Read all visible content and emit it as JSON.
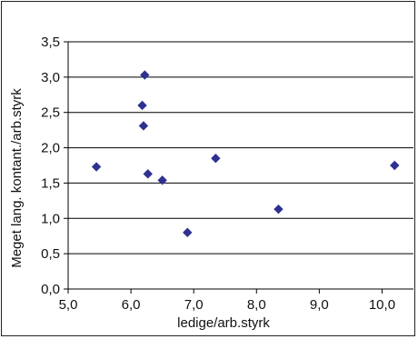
{
  "chart_data": {
    "type": "scatter",
    "title": "",
    "xlabel": "ledige/arb.styrk",
    "ylabel": "Meget lang. kontant./arb.styrk",
    "xlim": [
      5.0,
      10.5
    ],
    "ylim": [
      0.0,
      3.5
    ],
    "x_ticks": [
      "5,0",
      "6,0",
      "7,0",
      "8,0",
      "9,0",
      "10,0"
    ],
    "y_ticks": [
      "0,0",
      "0,5",
      "1,0",
      "1,5",
      "2,0",
      "2,5",
      "3,0",
      "3,5"
    ],
    "grid": "horizontal",
    "legend": "none",
    "marker_color": "#2E3192",
    "points": [
      {
        "x": 5.45,
        "y": 1.73
      },
      {
        "x": 6.18,
        "y": 2.6
      },
      {
        "x": 6.2,
        "y": 2.31
      },
      {
        "x": 6.22,
        "y": 3.03
      },
      {
        "x": 6.27,
        "y": 1.63
      },
      {
        "x": 6.5,
        "y": 1.54
      },
      {
        "x": 6.9,
        "y": 0.8
      },
      {
        "x": 7.35,
        "y": 1.85
      },
      {
        "x": 8.35,
        "y": 1.13
      },
      {
        "x": 10.2,
        "y": 1.75
      }
    ]
  }
}
